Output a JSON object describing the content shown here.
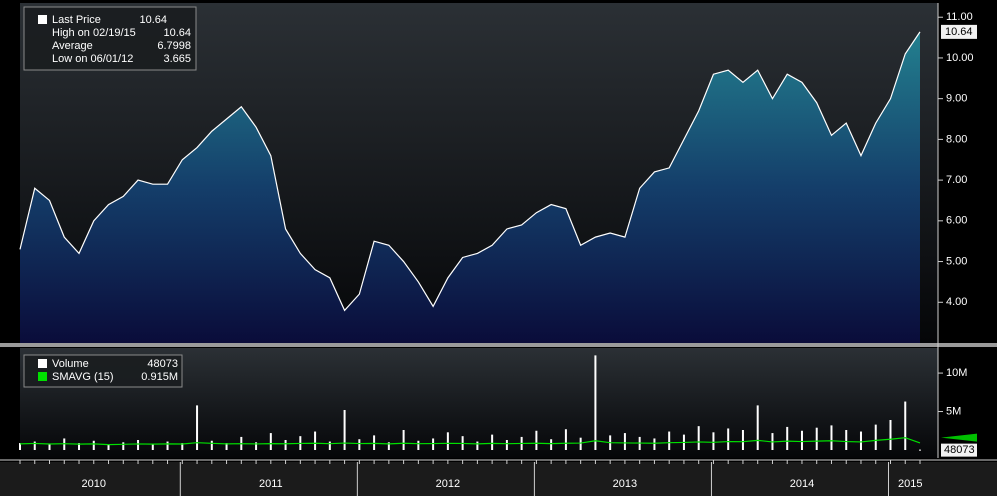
{
  "chart_data": [
    {
      "type": "area",
      "categories": [
        null,
        null,
        null,
        null,
        null,
        "2010",
        null,
        null,
        null,
        null,
        null,
        null,
        null,
        null,
        null,
        null,
        null,
        "2011",
        null,
        null,
        null,
        null,
        null,
        null,
        null,
        null,
        null,
        null,
        null,
        "2012",
        null,
        null,
        null,
        null,
        null,
        null,
        null,
        null,
        null,
        null,
        null,
        "2013",
        null,
        null,
        null,
        null,
        null,
        null,
        null,
        null,
        null,
        null,
        null,
        "2014",
        null,
        null,
        null,
        null,
        null,
        null,
        "2015",
        null
      ],
      "series": [
        {
          "name": "Last Price",
          "color": "#ffffff",
          "legend_value": 10.64,
          "values": [
            5.3,
            6.8,
            6.5,
            5.6,
            5.2,
            6.0,
            6.4,
            6.6,
            7.0,
            6.9,
            6.9,
            7.5,
            7.8,
            8.2,
            8.5,
            8.8,
            8.3,
            7.6,
            5.8,
            5.2,
            4.8,
            4.6,
            3.8,
            4.2,
            5.5,
            5.4,
            5.0,
            4.5,
            3.9,
            4.6,
            5.1,
            5.2,
            5.4,
            5.8,
            5.9,
            6.2,
            6.4,
            6.3,
            5.4,
            5.6,
            5.7,
            5.6,
            6.8,
            7.2,
            7.3,
            8.0,
            8.7,
            9.6,
            9.7,
            9.4,
            9.7,
            9.0,
            9.6,
            9.4,
            8.9,
            8.1,
            8.4,
            7.6,
            8.4,
            9.0,
            10.1,
            10.64
          ]
        }
      ],
      "stats": [
        {
          "label": "High on 02/19/15",
          "value": 10.64
        },
        {
          "label": "Average",
          "value": 6.7998
        },
        {
          "label": "Low on 06/01/12",
          "value": 3.665
        }
      ],
      "ylim": [
        3.0,
        11.3
      ],
      "yticks": [
        {
          "value": 4,
          "label": "4.00"
        },
        {
          "value": 5,
          "label": "5.00"
        },
        {
          "value": 6,
          "label": "6.00"
        },
        {
          "value": 7,
          "label": "7.00"
        },
        {
          "value": 8,
          "label": "8.00"
        },
        {
          "value": 9,
          "label": "9.00"
        },
        {
          "value": 10,
          "label": "10.00"
        },
        {
          "value": 11,
          "label": "11.00"
        }
      ]
    },
    {
      "type": "bar",
      "series": [
        {
          "name": "Volume",
          "color": "#ffffff",
          "legend_value": 48073,
          "values": [
            900000,
            1100000,
            800000,
            1500000,
            900000,
            1200000,
            700000,
            1000000,
            1300000,
            800000,
            1100000,
            900000,
            5800000,
            1200000,
            900000,
            1700000,
            1000000,
            2200000,
            1300000,
            1800000,
            2400000,
            1100000,
            5200000,
            1400000,
            1900000,
            1000000,
            2600000,
            1200000,
            1500000,
            2300000,
            1800000,
            1100000,
            2000000,
            1300000,
            1700000,
            2500000,
            1400000,
            2700000,
            1600000,
            12300000,
            1900000,
            2200000,
            1700000,
            1500000,
            2400000,
            2000000,
            3100000,
            2300000,
            2800000,
            2600000,
            5800000,
            2200000,
            3000000,
            2500000,
            2900000,
            3200000,
            2600000,
            2400000,
            3300000,
            3900000,
            6300000,
            48073
          ]
        },
        {
          "name": "SMAVG (15)",
          "color": "#00e000",
          "line": true,
          "legend_value": 915000,
          "legend_value_label": "0.915M",
          "values": [
            800000,
            850000,
            780000,
            820000,
            760000,
            800000,
            700000,
            740000,
            790000,
            760000,
            800000,
            780000,
            950000,
            870000,
            800000,
            820000,
            790000,
            830000,
            810000,
            850000,
            880000,
            820000,
            900000,
            840000,
            860000,
            800000,
            880000,
            820000,
            840000,
            870000,
            850000,
            800000,
            860000,
            820000,
            850000,
            880000,
            830000,
            880000,
            900000,
            1200000,
            950000,
            920000,
            900000,
            880000,
            950000,
            980000,
            1050000,
            1000000,
            1100000,
            1080000,
            1250000,
            1050000,
            1150000,
            1100000,
            1150000,
            1200000,
            1100000,
            1050000,
            1250000,
            1400000,
            1600000,
            915000
          ]
        }
      ],
      "ylim": [
        0,
        13000000
      ],
      "yticks": [
        {
          "value": 5000000,
          "label": "5M"
        },
        {
          "value": 10000000,
          "label": "10M"
        }
      ]
    }
  ]
}
